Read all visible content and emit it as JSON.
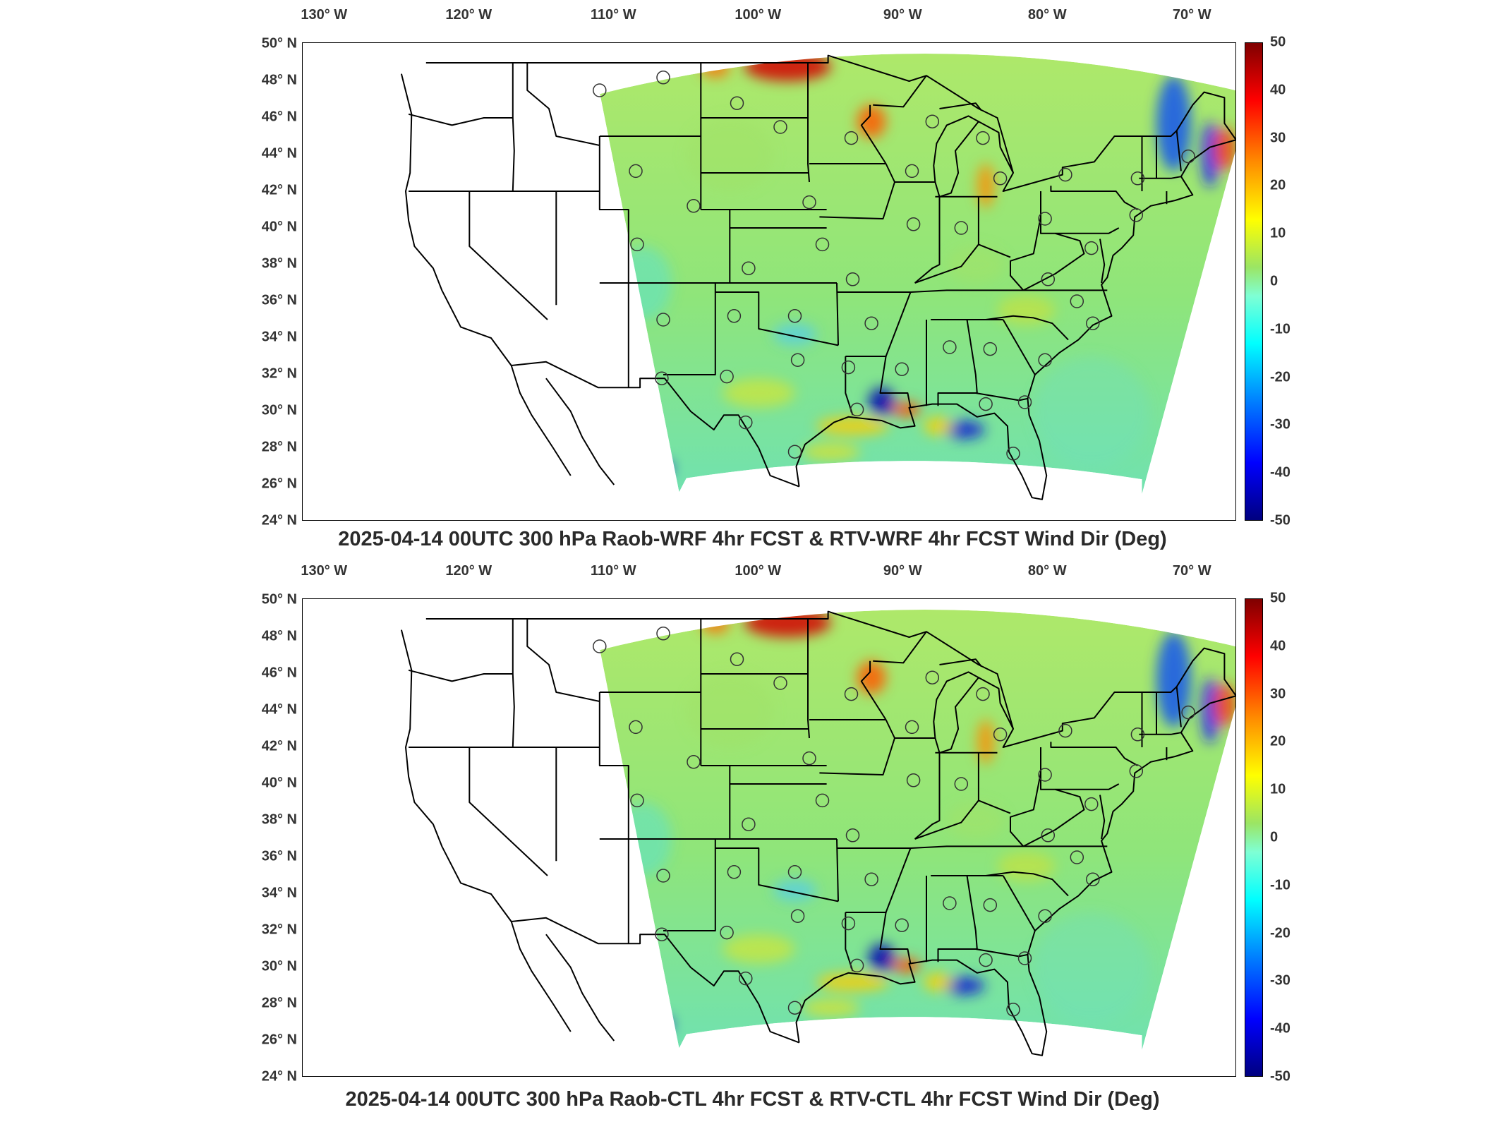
{
  "lon_labels": [
    "130° W",
    "120° W",
    "110° W",
    "100° W",
    "90° W",
    "80° W",
    "70° W"
  ],
  "lat_labels": [
    "50° N",
    "48° N",
    "46° N",
    "44° N",
    "42° N",
    "40° N",
    "38° N",
    "36° N",
    "34° N",
    "32° N",
    "30° N",
    "28° N",
    "26° N",
    "24° N"
  ],
  "colorbar": {
    "ticks": [
      "50",
      "40",
      "30",
      "20",
      "10",
      "0",
      "-10",
      "-20",
      "-30",
      "-40",
      "-50"
    ],
    "colors": [
      "#7f0000",
      "#ff0000",
      "#ff8c00",
      "#ffff00",
      "#9be564",
      "#7fffd4",
      "#00ffff",
      "#0080ff",
      "#0000ff",
      "#00007f"
    ]
  },
  "panels": [
    {
      "title": "2025-04-14 00UTC 300 hPa Raob-WRF 4hr FCST & RTV-WRF 4hr FCST Wind Dir (Deg)"
    },
    {
      "title": "2025-04-14 00UTC 300 hPa Raob-CTL 4hr FCST & RTV-CTL 4hr FCST Wind Dir (Deg)"
    }
  ],
  "stations": [
    [
      -111.0,
      47.5
    ],
    [
      -106.6,
      48.2
    ],
    [
      -101.5,
      46.8
    ],
    [
      -98.5,
      45.5
    ],
    [
      -93.6,
      44.9
    ],
    [
      -108.5,
      43.1
    ],
    [
      -104.5,
      41.2
    ],
    [
      -96.5,
      41.4
    ],
    [
      -89.4,
      43.1
    ],
    [
      -88.0,
      45.8
    ],
    [
      -84.5,
      44.9
    ],
    [
      -83.3,
      42.7
    ],
    [
      -78.8,
      42.9
    ],
    [
      -73.8,
      42.7
    ],
    [
      -70.3,
      43.9
    ],
    [
      -108.4,
      39.1
    ],
    [
      -100.7,
      37.8
    ],
    [
      -95.6,
      39.1
    ],
    [
      -93.5,
      37.2
    ],
    [
      -89.3,
      40.2
    ],
    [
      -86.0,
      40.0
    ],
    [
      -80.2,
      40.5
    ],
    [
      -77.0,
      38.9
    ],
    [
      -80.0,
      37.2
    ],
    [
      -78.0,
      36.0
    ],
    [
      -106.6,
      35.0
    ],
    [
      -101.7,
      35.2
    ],
    [
      -97.5,
      35.2
    ],
    [
      -92.2,
      34.8
    ],
    [
      -86.8,
      33.5
    ],
    [
      -84.0,
      33.4
    ],
    [
      -80.2,
      32.8
    ],
    [
      -76.9,
      34.8
    ],
    [
      -106.7,
      31.8
    ],
    [
      -102.2,
      31.9
    ],
    [
      -97.3,
      32.8
    ],
    [
      -93.8,
      32.4
    ],
    [
      -90.1,
      32.3
    ],
    [
      -100.9,
      29.4
    ],
    [
      -93.2,
      30.1
    ],
    [
      -97.5,
      27.8
    ],
    [
      -84.3,
      30.4
    ],
    [
      -81.6,
      30.5
    ],
    [
      -82.4,
      27.7
    ],
    [
      -73.9,
      40.7
    ]
  ]
}
